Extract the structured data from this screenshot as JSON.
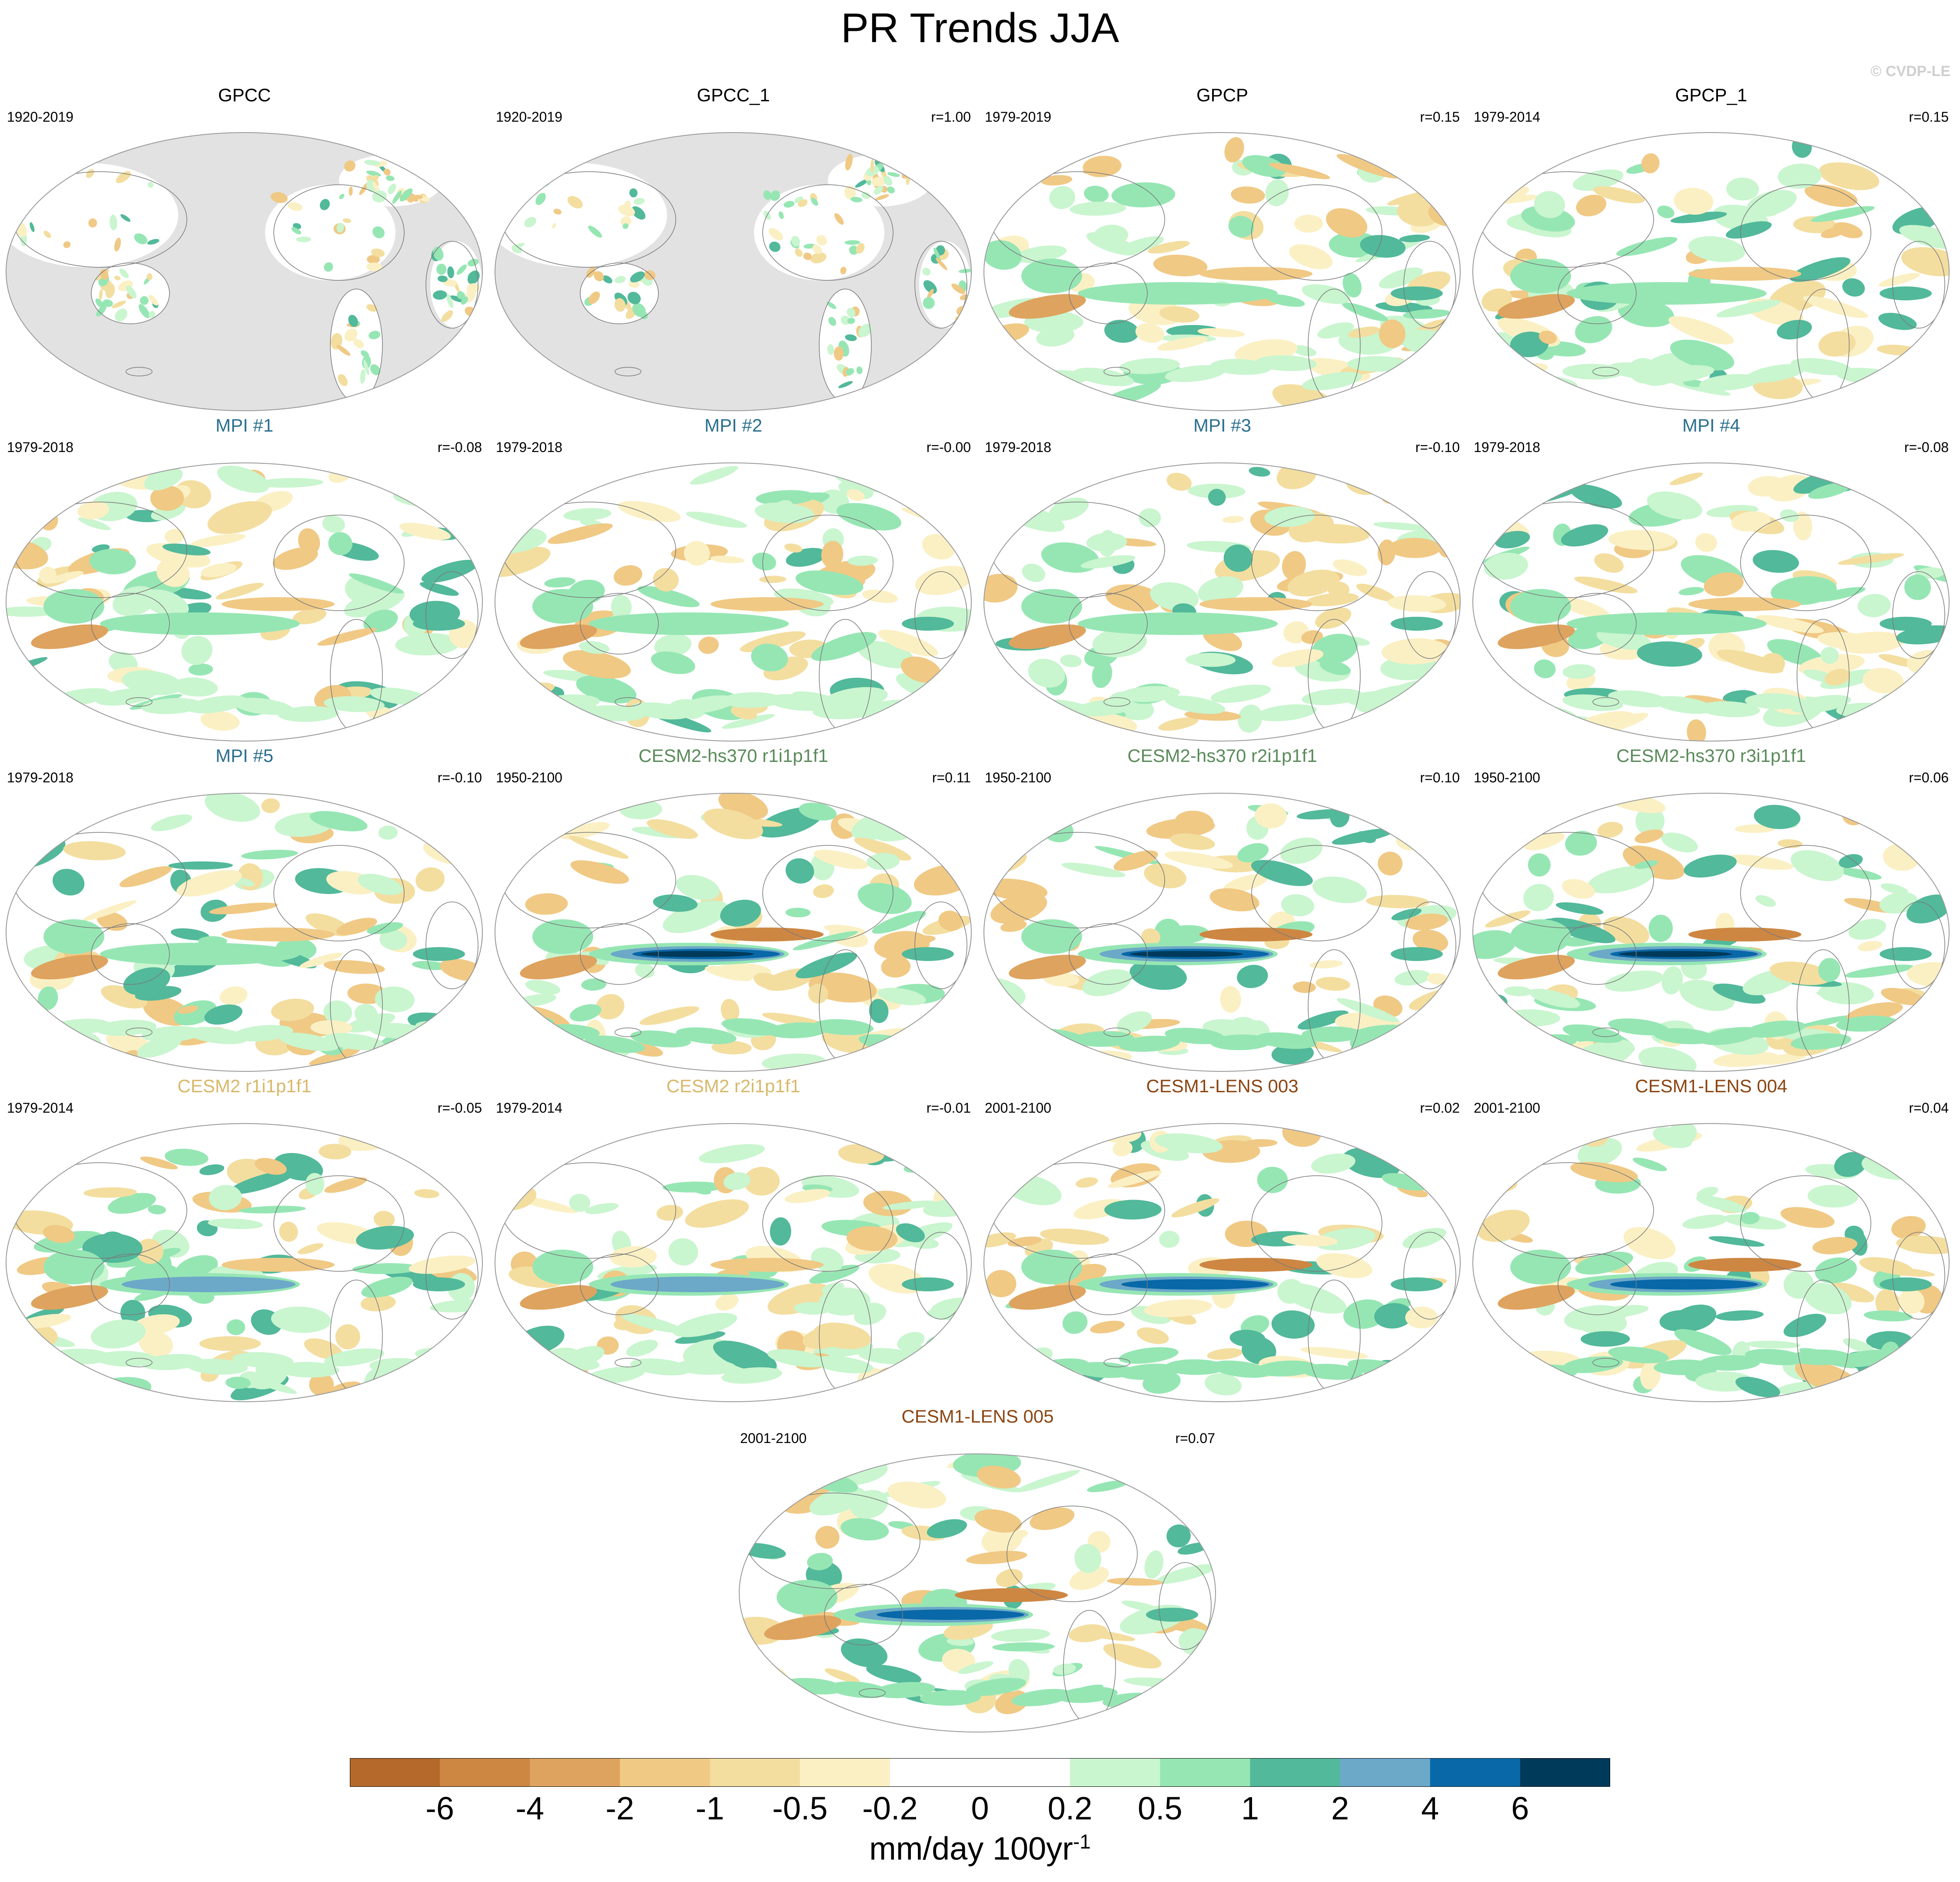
{
  "title": "PR Trends JJA",
  "copyright": "© CVDP-LE",
  "colors": {
    "land_gray": "#e2e2e2",
    "ocean": "#ffffff",
    "coast": "#7a7a7a",
    "obs_title": "#000000",
    "mpi_title": "#2a6f8f",
    "cesm2hs_title": "#5a8a5a",
    "cesm2_title": "#d8b86a",
    "lens_title": "#8b4513"
  },
  "panels": [
    {
      "title": "GPCC",
      "years": "1920-2019",
      "corr": "",
      "group": "obs",
      "land_only": true
    },
    {
      "title": "GPCC_1",
      "years": "1920-2019",
      "corr": "r=1.00",
      "group": "obs",
      "land_only": true
    },
    {
      "title": "GPCP",
      "years": "1979-2019",
      "corr": "r=0.15",
      "group": "obs",
      "land_only": false
    },
    {
      "title": "GPCP_1",
      "years": "1979-2014",
      "corr": "r=0.15",
      "group": "obs",
      "land_only": false
    },
    {
      "title": "MPI #1",
      "years": "1979-2018",
      "corr": "r=-0.08",
      "group": "mpi",
      "land_only": false
    },
    {
      "title": "MPI #2",
      "years": "1979-2018",
      "corr": "r=-0.00",
      "group": "mpi",
      "land_only": false
    },
    {
      "title": "MPI #3",
      "years": "1979-2018",
      "corr": "r=-0.10",
      "group": "mpi",
      "land_only": false
    },
    {
      "title": "MPI #4",
      "years": "1979-2018",
      "corr": "r=-0.08",
      "group": "mpi",
      "land_only": false
    },
    {
      "title": "MPI #5",
      "years": "1979-2018",
      "corr": "r=-0.10",
      "group": "mpi",
      "land_only": false
    },
    {
      "title": "CESM2-hs370 r1i1p1f1",
      "years": "1950-2100",
      "corr": "r=0.11",
      "group": "cesm2hs",
      "land_only": false
    },
    {
      "title": "CESM2-hs370 r2i1p1f1",
      "years": "1950-2100",
      "corr": "r=0.10",
      "group": "cesm2hs",
      "land_only": false
    },
    {
      "title": "CESM2-hs370 r3i1p1f1",
      "years": "1950-2100",
      "corr": "r=0.06",
      "group": "cesm2hs",
      "land_only": false
    },
    {
      "title": "CESM2 r1i1p1f1",
      "years": "1979-2014",
      "corr": "r=-0.05",
      "group": "cesm2",
      "land_only": false
    },
    {
      "title": "CESM2 r2i1p1f1",
      "years": "1979-2014",
      "corr": "r=-0.01",
      "group": "cesm2",
      "land_only": false
    },
    {
      "title": "CESM1-LENS 003",
      "years": "2001-2100",
      "corr": "r=0.02",
      "group": "lens",
      "land_only": false
    },
    {
      "title": "CESM1-LENS 004",
      "years": "2001-2100",
      "corr": "r=0.04",
      "group": "lens",
      "land_only": false
    },
    {
      "title": "CESM1-LENS 005",
      "years": "2001-2100",
      "corr": "r=0.07",
      "group": "lens",
      "land_only": false
    }
  ],
  "colorbar": {
    "colors": [
      "#b5692a",
      "#cd8743",
      "#dea35f",
      "#f0c985",
      "#f3dea0",
      "#fbf0c4",
      "#ffffff",
      "#ffffff",
      "#c9f5cf",
      "#96e6b4",
      "#52b99a",
      "#6ca8c8",
      "#0868a8",
      "#003a5a"
    ],
    "labels": [
      "-6",
      "-4",
      "-2",
      "-1",
      "-0.5",
      "-0.2",
      "0",
      "0.2",
      "0.5",
      "1",
      "2",
      "4",
      "6"
    ],
    "units": "mm/day 100yr",
    "units_sup": "-1"
  }
}
